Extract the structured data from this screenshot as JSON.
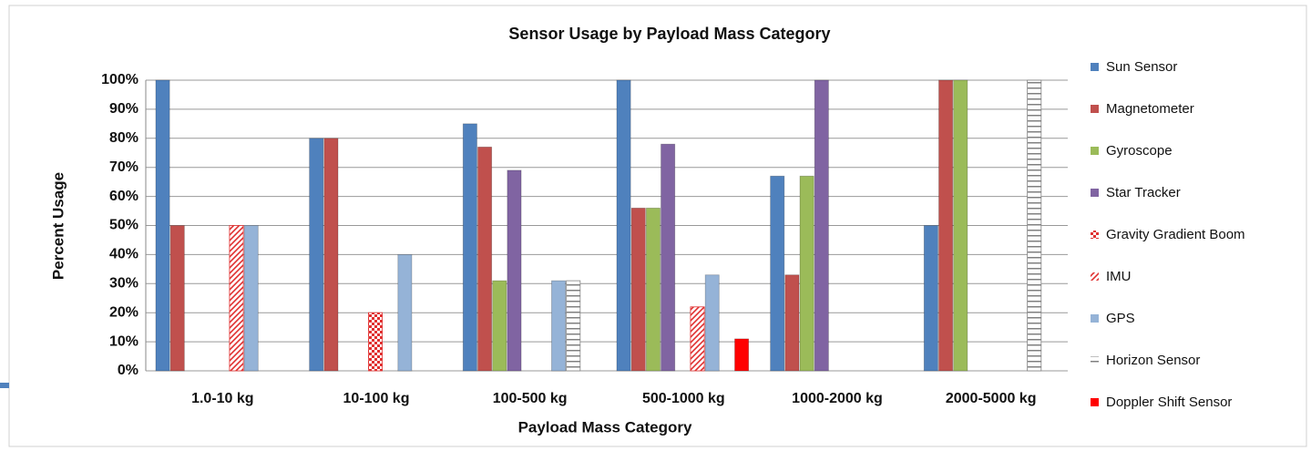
{
  "chart_data": {
    "type": "bar",
    "title": "Sensor Usage by Payload Mass Category",
    "x_label": "Payload Mass Category",
    "y_label": "Percent Usage",
    "categories": [
      "1.0-10 kg",
      "10-100 kg",
      "100-500 kg",
      "500-1000 kg",
      "1000-2000 kg",
      "2000-5000 kg"
    ],
    "series": [
      {
        "name": "Sun Sensor",
        "color": "#4f81bd",
        "values": [
          100,
          80,
          85,
          100,
          67,
          50
        ]
      },
      {
        "name": "Magnetometer",
        "color": "#c0504d",
        "values": [
          50,
          80,
          77,
          56,
          33,
          100
        ]
      },
      {
        "name": "Gyroscope",
        "color": "#9bbb59",
        "values": [
          0,
          0,
          31,
          56,
          67,
          100
        ]
      },
      {
        "name": "Star Tracker",
        "color": "#8064a2",
        "values": [
          0,
          0,
          69,
          78,
          100,
          0
        ]
      },
      {
        "name": "Gravity Gradient Boom",
        "color": "#e03030",
        "pattern": "checker",
        "values": [
          0,
          20,
          0,
          0,
          0,
          0
        ]
      },
      {
        "name": "IMU",
        "color": "#e03030",
        "pattern": "diagonal",
        "values": [
          50,
          0,
          0,
          22,
          0,
          0
        ]
      },
      {
        "name": "GPS",
        "color": "#95b3d7",
        "values": [
          50,
          40,
          31,
          33,
          0,
          0
        ]
      },
      {
        "name": "Horizon Sensor",
        "color": "#808080",
        "pattern": "horizontal",
        "values": [
          0,
          0,
          31,
          0,
          0,
          100
        ]
      },
      {
        "name": "Doppler Shift Sensor",
        "color": "#ff0000",
        "values": [
          0,
          0,
          0,
          11,
          0,
          0
        ]
      }
    ],
    "ylim": [
      0,
      100
    ],
    "yticks": [
      {
        "value": 0,
        "label": "0%"
      },
      {
        "value": 10,
        "label": "10%"
      },
      {
        "value": 20,
        "label": "20%"
      },
      {
        "value": 30,
        "label": "30%"
      },
      {
        "value": 40,
        "label": "40%"
      },
      {
        "value": 50,
        "label": "50%"
      },
      {
        "value": 60,
        "label": "60%"
      },
      {
        "value": 70,
        "label": "70%"
      },
      {
        "value": 80,
        "label": "80%"
      },
      {
        "value": 90,
        "label": "90%"
      },
      {
        "value": 100,
        "label": "100%"
      }
    ],
    "grid": true,
    "legend": "right"
  }
}
